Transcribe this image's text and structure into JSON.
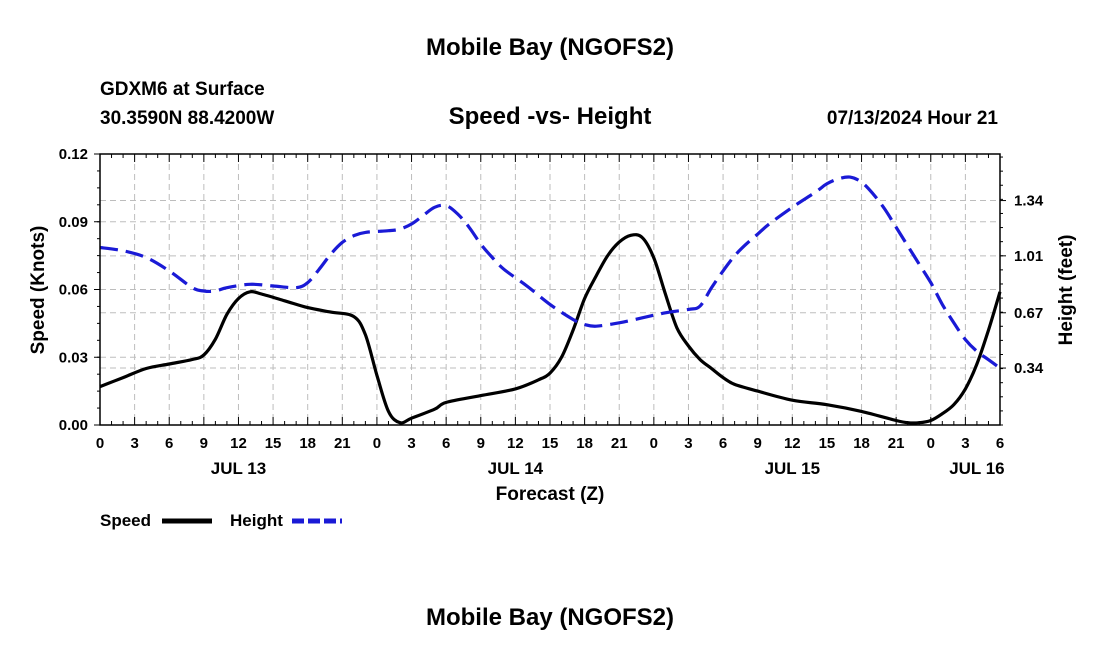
{
  "header": {
    "title": "Mobile Bay (NGOFS2)",
    "station": "GDXM6 at Surface",
    "coords": "30.3590N  88.4200W",
    "subtitle": "Speed -vs- Height",
    "datetime": "07/13/2024 Hour 21"
  },
  "footer": {
    "title": "Mobile Bay (NGOFS2)"
  },
  "legend": {
    "speed": "Speed",
    "height": "Height"
  },
  "colors": {
    "speed": "#000000",
    "height": "#1a1ad6",
    "grid": "#bdbdbd"
  },
  "chart_data": {
    "type": "line",
    "title": "Speed -vs- Height",
    "xlabel": "Forecast (Z)",
    "ylabel": "Speed (Knots)",
    "y2label": "Height (feet)",
    "x_unit": "hours from JUL 13 00Z",
    "xlim": [
      0,
      78
    ],
    "ylim": [
      0,
      0.12
    ],
    "y2lim": [
      0.0,
      1.618
    ],
    "x_ticks": [
      {
        "x": 0,
        "label": "0"
      },
      {
        "x": 3,
        "label": "3"
      },
      {
        "x": 6,
        "label": "6"
      },
      {
        "x": 9,
        "label": "9"
      },
      {
        "x": 12,
        "label": "12"
      },
      {
        "x": 15,
        "label": "15"
      },
      {
        "x": 18,
        "label": "18"
      },
      {
        "x": 21,
        "label": "21"
      },
      {
        "x": 24,
        "label": "0"
      },
      {
        "x": 27,
        "label": "3"
      },
      {
        "x": 30,
        "label": "6"
      },
      {
        "x": 33,
        "label": "9"
      },
      {
        "x": 36,
        "label": "12"
      },
      {
        "x": 39,
        "label": "15"
      },
      {
        "x": 42,
        "label": "18"
      },
      {
        "x": 45,
        "label": "21"
      },
      {
        "x": 48,
        "label": "0"
      },
      {
        "x": 51,
        "label": "3"
      },
      {
        "x": 54,
        "label": "6"
      },
      {
        "x": 57,
        "label": "9"
      },
      {
        "x": 60,
        "label": "12"
      },
      {
        "x": 63,
        "label": "15"
      },
      {
        "x": 66,
        "label": "18"
      },
      {
        "x": 69,
        "label": "21"
      },
      {
        "x": 72,
        "label": "0"
      },
      {
        "x": 75,
        "label": "3"
      },
      {
        "x": 78,
        "label": "6"
      }
    ],
    "day_labels": [
      {
        "x": 12,
        "label": "JUL 13"
      },
      {
        "x": 36,
        "label": "JUL 14"
      },
      {
        "x": 60,
        "label": "JUL 15"
      },
      {
        "x": 76,
        "label": "JUL 16"
      }
    ],
    "y_ticks": [
      {
        "v": 0.0,
        "label": "0.00"
      },
      {
        "v": 0.03,
        "label": "0.03"
      },
      {
        "v": 0.06,
        "label": "0.06"
      },
      {
        "v": 0.09,
        "label": "0.09"
      },
      {
        "v": 0.12,
        "label": "0.12"
      }
    ],
    "y2_ticks": [
      {
        "v": 0.34,
        "label": "0.34"
      },
      {
        "v": 0.67,
        "label": "0.67"
      },
      {
        "v": 1.01,
        "label": "1.01"
      },
      {
        "v": 1.34,
        "label": "1.34"
      }
    ],
    "series": [
      {
        "name": "Speed",
        "axis": "left",
        "style": "solid",
        "points": [
          [
            0,
            0.017
          ],
          [
            2,
            0.021
          ],
          [
            4,
            0.025
          ],
          [
            6,
            0.027
          ],
          [
            8,
            0.029
          ],
          [
            9,
            0.031
          ],
          [
            10,
            0.038
          ],
          [
            11,
            0.049
          ],
          [
            12,
            0.056
          ],
          [
            13,
            0.059
          ],
          [
            14,
            0.058
          ],
          [
            16,
            0.055
          ],
          [
            18,
            0.052
          ],
          [
            20,
            0.05
          ],
          [
            22,
            0.048
          ],
          [
            23,
            0.04
          ],
          [
            24,
            0.022
          ],
          [
            25,
            0.006
          ],
          [
            26,
            0.001
          ],
          [
            27,
            0.003
          ],
          [
            29,
            0.007
          ],
          [
            30,
            0.01
          ],
          [
            33,
            0.013
          ],
          [
            36,
            0.016
          ],
          [
            38,
            0.02
          ],
          [
            39,
            0.023
          ],
          [
            40,
            0.03
          ],
          [
            41,
            0.042
          ],
          [
            42,
            0.056
          ],
          [
            43,
            0.066
          ],
          [
            44,
            0.075
          ],
          [
            45,
            0.081
          ],
          [
            46,
            0.084
          ],
          [
            47,
            0.083
          ],
          [
            48,
            0.074
          ],
          [
            49,
            0.058
          ],
          [
            50,
            0.043
          ],
          [
            51,
            0.035
          ],
          [
            52,
            0.029
          ],
          [
            53,
            0.025
          ],
          [
            54,
            0.021
          ],
          [
            55,
            0.018
          ],
          [
            57,
            0.015
          ],
          [
            60,
            0.011
          ],
          [
            63,
            0.009
          ],
          [
            66,
            0.006
          ],
          [
            69,
            0.002
          ],
          [
            70,
            0.001
          ],
          [
            71,
            0.001
          ],
          [
            72,
            0.002
          ],
          [
            73,
            0.005
          ],
          [
            74,
            0.009
          ],
          [
            75,
            0.016
          ],
          [
            76,
            0.027
          ],
          [
            77,
            0.042
          ],
          [
            78,
            0.059
          ]
        ]
      },
      {
        "name": "Height",
        "axis": "right",
        "style": "dashed",
        "points": [
          [
            0,
            1.06
          ],
          [
            2,
            1.04
          ],
          [
            4,
            1.0
          ],
          [
            6,
            0.92
          ],
          [
            8,
            0.82
          ],
          [
            9,
            0.8
          ],
          [
            10,
            0.8
          ],
          [
            11,
            0.82
          ],
          [
            13,
            0.84
          ],
          [
            15,
            0.83
          ],
          [
            17,
            0.82
          ],
          [
            18,
            0.85
          ],
          [
            19,
            0.93
          ],
          [
            20,
            1.02
          ],
          [
            21,
            1.09
          ],
          [
            22,
            1.13
          ],
          [
            23,
            1.15
          ],
          [
            25,
            1.16
          ],
          [
            26,
            1.17
          ],
          [
            27,
            1.2
          ],
          [
            28,
            1.25
          ],
          [
            29,
            1.3
          ],
          [
            30,
            1.31
          ],
          [
            31,
            1.26
          ],
          [
            32,
            1.18
          ],
          [
            33,
            1.08
          ],
          [
            34,
            1.0
          ],
          [
            35,
            0.93
          ],
          [
            37,
            0.83
          ],
          [
            39,
            0.72
          ],
          [
            41,
            0.63
          ],
          [
            42,
            0.6
          ],
          [
            43,
            0.59
          ],
          [
            45,
            0.61
          ],
          [
            47,
            0.64
          ],
          [
            49,
            0.67
          ],
          [
            51,
            0.69
          ],
          [
            52,
            0.71
          ],
          [
            53,
            0.82
          ],
          [
            54,
            0.92
          ],
          [
            55,
            1.01
          ],
          [
            56,
            1.08
          ],
          [
            57,
            1.14
          ],
          [
            58,
            1.2
          ],
          [
            60,
            1.3
          ],
          [
            62,
            1.39
          ],
          [
            63,
            1.44
          ],
          [
            64,
            1.47
          ],
          [
            65,
            1.48
          ],
          [
            66,
            1.45
          ],
          [
            67,
            1.38
          ],
          [
            68,
            1.29
          ],
          [
            69,
            1.18
          ],
          [
            70,
            1.07
          ],
          [
            71,
            0.96
          ],
          [
            72,
            0.85
          ],
          [
            73,
            0.72
          ],
          [
            74,
            0.61
          ],
          [
            75,
            0.51
          ],
          [
            76,
            0.44
          ],
          [
            77,
            0.39
          ],
          [
            78,
            0.34
          ]
        ]
      }
    ]
  }
}
